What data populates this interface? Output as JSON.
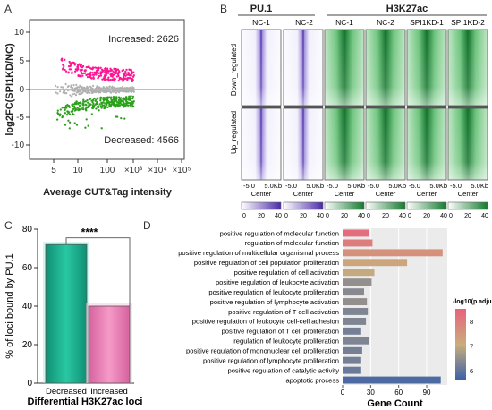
{
  "panels": {
    "A": {
      "letter": "A",
      "ylabel": "log2FC(SPI1KD/NC)",
      "xlabel": "Average CUT&Tag intensity",
      "increased_label": "Increased: 2626",
      "decreased_label": "Decreased: 4566",
      "yticks": [
        "-10",
        "-5",
        "0",
        "5",
        "10"
      ],
      "xticks": [
        "5",
        "10",
        "100",
        "×10³",
        "×10⁴",
        "×10⁵"
      ]
    },
    "B": {
      "letter": "B",
      "group1": "PU.1",
      "group2": "H3K27ac",
      "columns": [
        "NC-1",
        "NC-2",
        "NC-1",
        "NC-2",
        "SPI1KD-1",
        "SPI1KD-2"
      ],
      "row_labels": [
        "Down_regulated",
        "Up_regulated"
      ],
      "axis_left": "-5.0",
      "axis_right": "5.0Kb",
      "center_label": "Center",
      "colorbar_ticks": [
        "0",
        "20",
        "40"
      ]
    },
    "C": {
      "letter": "C",
      "significance": "****"
    },
    "D": {
      "letter": "D",
      "legend_title": "-log10(p.adjust)"
    }
  },
  "colors": {
    "increased": "#ff1493",
    "decreased": "#2ca01c",
    "neutral": "#b0b0b0",
    "zero_line": "#f4a6a6",
    "pu1": "#5b3fb5",
    "h3k27ac": "#1e8a3a",
    "bar_decreased": "#1aaf8f",
    "bar_increased": "#e87ab2"
  },
  "chart_data": [
    {
      "panel": "A",
      "type": "scatter",
      "title": "",
      "xlabel": "Average CUT&Tag intensity",
      "ylabel": "log2FC(SPI1KD/NC)",
      "x_scale": "log",
      "ylim": [
        -12,
        12
      ],
      "annotations": [
        "Increased: 2626",
        "Decreased: 4566"
      ],
      "series": [
        {
          "name": "Increased",
          "count": 2626
        },
        {
          "name": "Decreased",
          "count": 4566
        }
      ],
      "horizontal_line_y": 0
    },
    {
      "panel": "C",
      "type": "bar",
      "categories": [
        "Decreased",
        "Increased"
      ],
      "values": [
        72,
        40
      ],
      "xlabel": "Differential H3K27ac loci",
      "ylabel": "% of loci bound by PU.1",
      "ylim": [
        0,
        80
      ],
      "yticks": [
        0,
        20,
        40,
        60,
        80
      ],
      "annotation": "****"
    },
    {
      "panel": "D",
      "type": "bar",
      "orientation": "horizontal",
      "categories": [
        "positive regulation of molecular function",
        "regulation of molecular function",
        "positive regulation of multicellular organismal process",
        "positive regulation of cell population proliferation",
        "positive regulation of cell activation",
        "positive regulation of leukocyte activation",
        "positive regulation of leukocyte proliferation",
        "positive regulation of lymphocyte activation",
        "positive regulation of T cell activation",
        "positive regulation of leukocyte cell-cell adhesion",
        "positive regulation of T cell proliferation",
        "regulation of leukocyte proliferation",
        "positive regulation of mononuclear cell proliferation",
        "positive regulation of lymphocyte proliferation",
        "positive regulation of catalytic activity",
        "apoptotic process"
      ],
      "values": [
        28,
        32,
        107,
        69,
        34,
        31,
        23,
        26,
        27,
        25,
        19,
        28,
        21,
        19,
        19,
        105
      ],
      "color_values": [
        8.3,
        8.0,
        7.6,
        7.2,
        7.0,
        6.5,
        6.4,
        6.5,
        6.3,
        6.3,
        6.2,
        6.3,
        6.2,
        6.2,
        6.1,
        5.8
      ],
      "xlabel": "Gene Count",
      "xticks": [
        0,
        30,
        60,
        90
      ],
      "xlim": [
        0,
        112
      ],
      "legend_title": "-log10(p.adjust)",
      "legend_ticks": [
        6,
        7,
        8
      ],
      "color_range": [
        5.6,
        8.5
      ]
    }
  ]
}
